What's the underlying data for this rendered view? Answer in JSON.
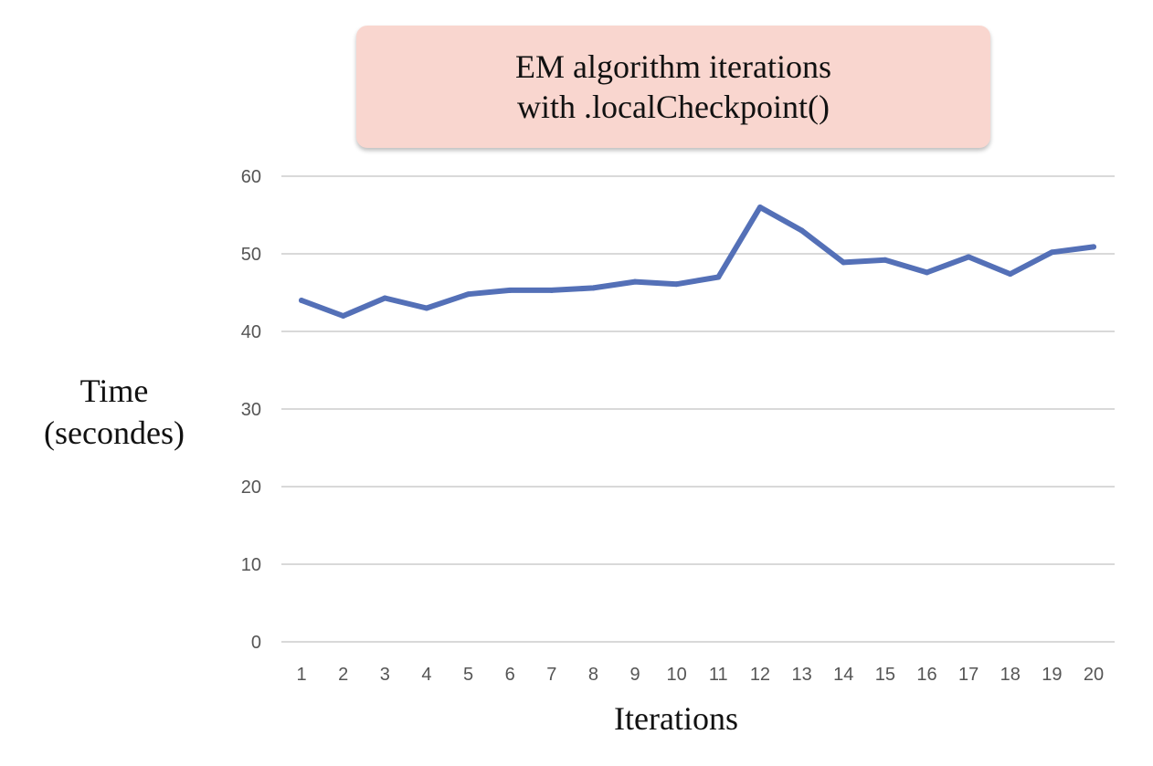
{
  "chart_data": {
    "type": "line",
    "title_lines": [
      "EM algorithm iterations",
      "with .localCheckpoint()"
    ],
    "ylabel_lines": [
      "Time",
      "(secondes)"
    ],
    "xlabel": "Iterations",
    "categories": [
      "1",
      "2",
      "3",
      "4",
      "5",
      "6",
      "7",
      "8",
      "9",
      "10",
      "11",
      "12",
      "13",
      "14",
      "15",
      "16",
      "17",
      "18",
      "19",
      "20"
    ],
    "values": [
      44,
      42,
      44.3,
      43,
      44.8,
      45.3,
      45.3,
      45.6,
      46.4,
      46.1,
      47,
      56,
      53,
      48.9,
      49.2,
      47.6,
      49.6,
      47.4,
      50.2,
      50.9
    ],
    "yticks": [
      0,
      10,
      20,
      30,
      40,
      50,
      60
    ],
    "ylim": [
      0,
      60
    ],
    "grid": true,
    "line_color": "#5470b7",
    "grid_color": "#d9d9d9",
    "title_box_color": "#f9d6cf"
  }
}
